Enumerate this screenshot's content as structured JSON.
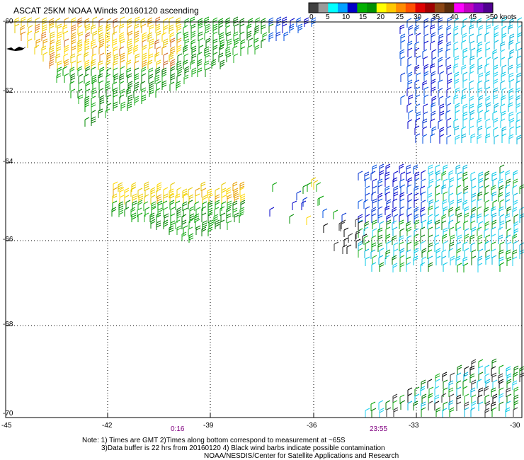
{
  "title": "ASCAT 25KM NOAA Winds 20160120 ascending",
  "colorbar": {
    "labels": [
      "0",
      "5",
      "10",
      "15",
      "20",
      "25",
      "30",
      "35",
      "40",
      "45",
      ">50 knots"
    ],
    "colors": [
      "#404040",
      "#9a9a9a",
      "#00ffff",
      "#00a0ff",
      "#0000c8",
      "#00b000",
      "#009000",
      "#ffff00",
      "#ffc800",
      "#ff8c00",
      "#ff5000",
      "#e00000",
      "#a00000",
      "#8b4513",
      "#5a2d0c",
      "#ff00ff",
      "#c000c0",
      "#8000c0",
      "#500090"
    ]
  },
  "y_axis": {
    "labels": [
      "-60",
      "-62",
      "-64",
      "-66",
      "-68",
      "-70"
    ]
  },
  "x_axis": {
    "labels": [
      "-45",
      "-42",
      "-39",
      "-36",
      "-33",
      "-30"
    ]
  },
  "time_labels": [
    "0:16",
    "23:55"
  ],
  "notes": {
    "line1": "Note: 1) Times are GMT 2)Times along bottom correspond to measurement at ~65S",
    "line2": "3)Data buffer is 22 hrs from 20160120 4) Black wind barbs indicate possible contamination",
    "line3": "NOAA/NESDIS/Center for Satellite Applications and Research"
  }
}
